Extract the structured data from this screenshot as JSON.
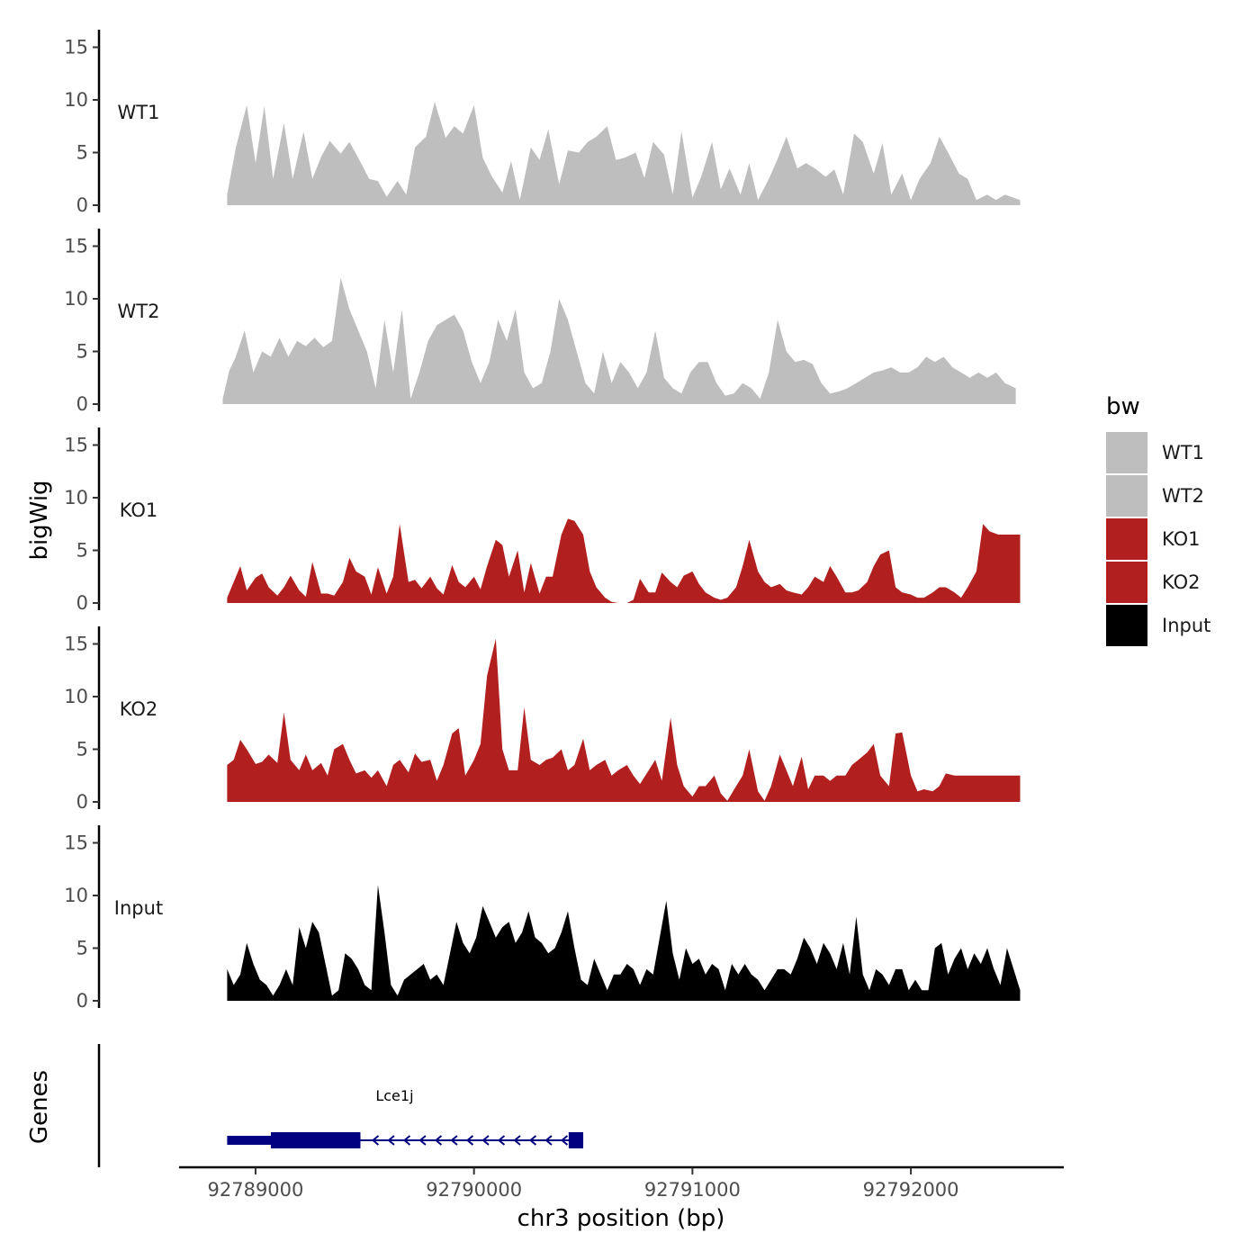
{
  "chart_data": {
    "type": "area",
    "chromosome": "chr3",
    "xlabel": "chr3 position (bp)",
    "ylabel": "bigWig",
    "gene_panel_label": "Genes",
    "xlim": [
      92788650,
      92792700
    ],
    "ylim": [
      0,
      16
    ],
    "x_ticks": [
      92789000,
      92790000,
      92791000,
      92792000
    ],
    "x_tick_labels": [
      "92789000",
      "92790000",
      "92791000",
      "92792000"
    ],
    "y_ticks": [
      0,
      5,
      10,
      15
    ],
    "y_tick_labels": [
      "0",
      "5",
      "10",
      "15"
    ],
    "legend": {
      "title": "bw",
      "position": "right"
    },
    "series": [
      {
        "name": "WT1",
        "color": "#bebebe",
        "x": [
          92788870,
          92788910,
          92788960,
          92789000,
          92789040,
          92789080,
          92789130,
          92789170,
          92789220,
          92789260,
          92789300,
          92789340,
          92789390,
          92789430,
          92789470,
          92789520,
          92789560,
          92789600,
          92789650,
          92789690,
          92789730,
          92789780,
          92789820,
          92789870,
          92789910,
          92789950,
          92790000,
          92790040,
          92790080,
          92790130,
          92790170,
          92790210,
          92790260,
          92790300,
          92790340,
          92790390,
          92790430,
          92790480,
          92790520,
          92790560,
          92790610,
          92790650,
          92790690,
          92790740,
          92790780,
          92790820,
          92790870,
          92790910,
          92790950,
          92791000,
          92791040,
          92791090,
          92791130,
          92791170,
          92791220,
          92791260,
          92791300,
          92791350,
          92791390,
          92791430,
          92791480,
          92791520,
          92791560,
          92791610,
          92791650,
          92791690,
          92791740,
          92791780,
          92791830,
          92791870,
          92791910,
          92791960,
          92792000,
          92792040,
          92792090,
          92792130,
          92792170,
          92792220,
          92792260,
          92792300,
          92792350,
          92792390,
          92792430,
          92792500
        ],
        "values": [
          1.0,
          5.5,
          9.5,
          4.0,
          9.4,
          2.5,
          7.8,
          2.5,
          7.0,
          2.5,
          4.6,
          6.1,
          4.9,
          6.0,
          4.5,
          2.5,
          2.3,
          0.8,
          2.3,
          1.0,
          5.5,
          6.5,
          9.8,
          6.4,
          7.5,
          6.8,
          9.5,
          4.5,
          2.8,
          1.2,
          4.2,
          0.5,
          5.5,
          4.3,
          7.2,
          2.0,
          5.2,
          5.0,
          6.0,
          6.5,
          7.5,
          4.3,
          4.5,
          5.0,
          2.6,
          6.0,
          4.8,
          1.0,
          7.0,
          0.7,
          2.7,
          6.0,
          1.5,
          3.5,
          1.0,
          4.0,
          0.5,
          2.5,
          4.4,
          6.5,
          3.5,
          4.0,
          3.5,
          2.7,
          3.4,
          1.0,
          6.8,
          6.0,
          3.0,
          5.9,
          1.0,
          3.0,
          0.5,
          2.5,
          4.0,
          6.5,
          5.0,
          3.0,
          2.5,
          0.5,
          1.0,
          0.5,
          1.0,
          0.5
        ]
      },
      {
        "name": "WT2",
        "color": "#bebebe",
        "x": [
          92788850,
          92788880,
          92788910,
          92788950,
          92788990,
          92789030,
          92789070,
          92789110,
          92789150,
          92789190,
          92789230,
          92789270,
          92789310,
          92789350,
          92789390,
          92789430,
          92789470,
          92789510,
          92789550,
          92789590,
          92789630,
          92789670,
          92789710,
          92789750,
          92789790,
          92789830,
          92789870,
          92789910,
          92789950,
          92789990,
          92790030,
          92790070,
          92790110,
          92790150,
          92790190,
          92790230,
          92790270,
          92790310,
          92790350,
          92790390,
          92790430,
          92790470,
          92790510,
          92790550,
          92790590,
          92790630,
          92790670,
          92790710,
          92790750,
          92790790,
          92790830,
          92790870,
          92790910,
          92790950,
          92790990,
          92791030,
          92791070,
          92791110,
          92791150,
          92791190,
          92791230,
          92791270,
          92791310,
          92791350,
          92791390,
          92791430,
          92791470,
          92791510,
          92791550,
          92791590,
          92791630,
          92791670,
          92791710,
          92791750,
          92791790,
          92791830,
          92791870,
          92791910,
          92791950,
          92791990,
          92792030,
          92792070,
          92792110,
          92792150,
          92792190,
          92792230,
          92792270,
          92792310,
          92792350,
          92792390,
          92792430,
          92792480
        ],
        "values": [
          0.5,
          3.2,
          4.5,
          7.0,
          3.0,
          5.0,
          4.5,
          6.3,
          4.5,
          6.0,
          5.5,
          6.3,
          5.4,
          6.0,
          12.0,
          9.0,
          7.0,
          5.0,
          1.5,
          8.0,
          3.0,
          9.0,
          0.5,
          3.0,
          6.0,
          7.5,
          8.0,
          8.5,
          7.0,
          4.0,
          2.0,
          4.0,
          8.0,
          6.0,
          9.0,
          3.0,
          1.5,
          2.0,
          5.0,
          10.0,
          8.0,
          5.0,
          2.0,
          1.0,
          5.0,
          2.0,
          4.0,
          3.0,
          1.5,
          3.0,
          7.0,
          2.5,
          1.5,
          1.0,
          3.0,
          4.0,
          4.0,
          2.0,
          0.8,
          1.0,
          2.0,
          1.5,
          0.5,
          3.0,
          8.0,
          5.0,
          4.0,
          4.2,
          3.8,
          2.0,
          1.0,
          1.2,
          1.5,
          2.0,
          2.5,
          3.0,
          3.2,
          3.5,
          3.0,
          3.0,
          3.5,
          4.5,
          4.0,
          4.5,
          3.5,
          3.0,
          2.5,
          3.0,
          2.5,
          3.0,
          2.0,
          1.5
        ]
      },
      {
        "name": "KO1",
        "color": "#b21f1f",
        "x": [
          92788870,
          92788900,
          92788930,
          92788960,
          92789000,
          92789030,
          92789060,
          92789100,
          92789130,
          92789160,
          92789200,
          92789230,
          92789260,
          92789300,
          92789330,
          92789360,
          92789400,
          92789430,
          92789460,
          92789500,
          92789530,
          92789560,
          92789600,
          92789630,
          92789660,
          92789700,
          92789730,
          92789760,
          92789800,
          92789830,
          92789860,
          92789900,
          92789930,
          92789960,
          92790000,
          92790030,
          92790060,
          92790100,
          92790130,
          92790160,
          92790200,
          92790230,
          92790260,
          92790300,
          92790330,
          92790360,
          92790400,
          92790430,
          92790460,
          92790500,
          92790530,
          92790560,
          92790600,
          92790630,
          92790660,
          92790700,
          92790730,
          92790760,
          92790800,
          92790830,
          92790860,
          92790900,
          92790930,
          92790960,
          92791000,
          92791030,
          92791060,
          92791100,
          92791130,
          92791160,
          92791200,
          92791230,
          92791260,
          92791300,
          92791330,
          92791360,
          92791400,
          92791430,
          92791460,
          92791500,
          92791530,
          92791560,
          92791600,
          92791630,
          92791660,
          92791700,
          92791730,
          92791760,
          92791800,
          92791830,
          92791860,
          92791900,
          92791930,
          92791960,
          92792000,
          92792030,
          92792060,
          92792100,
          92792130,
          92792160,
          92792200,
          92792230,
          92792260,
          92792300,
          92792330,
          92792360,
          92792400,
          92792430,
          92792460,
          92792500
        ],
        "values": [
          0.5,
          2.0,
          3.5,
          1.2,
          2.4,
          2.8,
          1.5,
          0.7,
          1.5,
          2.6,
          1.2,
          0.6,
          3.9,
          0.9,
          0.9,
          0.7,
          2.0,
          4.3,
          3.0,
          2.5,
          0.8,
          3.4,
          0.9,
          2.5,
          7.5,
          2.0,
          2.2,
          1.4,
          2.5,
          1.4,
          0.8,
          3.6,
          2.0,
          1.5,
          2.5,
          1.3,
          3.5,
          6.0,
          5.5,
          2.5,
          5.0,
          1.0,
          3.8,
          0.9,
          2.5,
          2.5,
          6.5,
          8.0,
          7.8,
          6.5,
          3.0,
          1.5,
          0.5,
          0.1,
          0,
          0,
          0.3,
          2.3,
          1.0,
          1.0,
          2.9,
          2.0,
          1.5,
          2.6,
          3.0,
          1.8,
          1.0,
          0.5,
          0.3,
          0.5,
          1.5,
          3.5,
          6.0,
          3.0,
          2.0,
          1.5,
          1.8,
          1.2,
          1.0,
          0.8,
          1.5,
          2.5,
          2.0,
          3.5,
          2.5,
          1.0,
          1.0,
          1.2,
          2.0,
          3.5,
          4.6,
          5.0,
          1.5,
          1.0,
          0.8,
          0.5,
          0.5,
          1.0,
          1.5,
          1.5,
          1.0,
          0.5,
          1.5,
          3.0,
          7.5,
          6.8,
          6.5,
          6.5,
          6.5,
          6.5
        ]
      },
      {
        "name": "KO2",
        "color": "#b21f1f",
        "x": [
          92788870,
          92788900,
          92788930,
          92788960,
          92789000,
          92789030,
          92789060,
          92789100,
          92789130,
          92789160,
          92789200,
          92789230,
          92789260,
          92789300,
          92789330,
          92789360,
          92789400,
          92789430,
          92789460,
          92789500,
          92789530,
          92789560,
          92789600,
          92789630,
          92789660,
          92789700,
          92789730,
          92789760,
          92789800,
          92789830,
          92789860,
          92789900,
          92789930,
          92789960,
          92790000,
          92790030,
          92790060,
          92790100,
          92790130,
          92790160,
          92790200,
          92790230,
          92790260,
          92790300,
          92790330,
          92790360,
          92790400,
          92790430,
          92790460,
          92790500,
          92790530,
          92790560,
          92790600,
          92790630,
          92790660,
          92790700,
          92790730,
          92790760,
          92790800,
          92790830,
          92790860,
          92790900,
          92790930,
          92790960,
          92791000,
          92791030,
          92791060,
          92791100,
          92791130,
          92791160,
          92791200,
          92791230,
          92791260,
          92791300,
          92791330,
          92791360,
          92791400,
          92791430,
          92791460,
          92791500,
          92791530,
          92791560,
          92791600,
          92791630,
          92791660,
          92791700,
          92791730,
          92791760,
          92791800,
          92791830,
          92791860,
          92791900,
          92791930,
          92791960,
          92792000,
          92792030,
          92792060,
          92792100,
          92792130,
          92792160,
          92792200,
          92792230,
          92792260,
          92792300,
          92792330,
          92792360,
          92792400,
          92792430,
          92792460,
          92792500
        ],
        "values": [
          3.5,
          4.0,
          5.9,
          5.0,
          3.6,
          3.8,
          4.5,
          3.7,
          8.5,
          4.0,
          3.0,
          4.5,
          3.0,
          3.7,
          2.5,
          5.0,
          5.5,
          4.0,
          2.7,
          3.0,
          2.3,
          3.0,
          1.5,
          3.5,
          4.0,
          2.8,
          4.6,
          3.8,
          4.0,
          2.0,
          3.5,
          6.5,
          7.0,
          2.5,
          4.0,
          5.5,
          12.0,
          15.5,
          5.0,
          3.0,
          3.0,
          9.0,
          4.0,
          3.5,
          4.0,
          4.2,
          5.0,
          3.0,
          3.5,
          6.0,
          3.0,
          3.5,
          4.0,
          2.5,
          3.0,
          3.5,
          2.5,
          1.7,
          3.0,
          4.0,
          2.0,
          8.0,
          3.5,
          1.5,
          0.5,
          1.5,
          1.5,
          2.5,
          0.8,
          0.1,
          1.5,
          2.5,
          5.0,
          1.0,
          0.1,
          1.5,
          4.5,
          3.0,
          1.5,
          4.3,
          1.2,
          2.5,
          2.5,
          2.0,
          2.5,
          2.5,
          3.5,
          4.0,
          4.7,
          5.5,
          2.5,
          1.5,
          6.5,
          6.6,
          2.5,
          1.0,
          1.2,
          1.0,
          1.5,
          2.7,
          2.5,
          2.5,
          2.5,
          2.5,
          2.5,
          2.5,
          2.5,
          2.5,
          2.5,
          2.5
        ]
      },
      {
        "name": "Input",
        "color": "#000000",
        "x": [
          92788870,
          92788900,
          92788930,
          92788960,
          92788990,
          92789020,
          92789050,
          92789080,
          92789110,
          92789140,
          92789170,
          92789200,
          92789230,
          92789260,
          92789290,
          92789320,
          92789350,
          92789380,
          92789410,
          92789440,
          92789470,
          92789500,
          92789530,
          92789560,
          92789590,
          92789620,
          92789650,
          92789680,
          92789710,
          92789740,
          92789770,
          92789800,
          92789830,
          92789860,
          92789890,
          92789920,
          92789950,
          92789980,
          92790010,
          92790040,
          92790070,
          92790100,
          92790130,
          92790160,
          92790190,
          92790220,
          92790250,
          92790280,
          92790310,
          92790340,
          92790370,
          92790400,
          92790430,
          92790460,
          92790490,
          92790520,
          92790550,
          92790580,
          92790610,
          92790640,
          92790670,
          92790700,
          92790730,
          92790760,
          92790790,
          92790820,
          92790850,
          92790880,
          92790910,
          92790940,
          92790970,
          92791000,
          92791030,
          92791060,
          92791090,
          92791120,
          92791150,
          92791180,
          92791210,
          92791240,
          92791270,
          92791300,
          92791330,
          92791360,
          92791390,
          92791420,
          92791450,
          92791480,
          92791510,
          92791540,
          92791570,
          92791600,
          92791630,
          92791660,
          92791690,
          92791720,
          92791750,
          92791780,
          92791810,
          92791840,
          92791870,
          92791900,
          92791930,
          92791960,
          92791990,
          92792020,
          92792050,
          92792080,
          92792110,
          92792140,
          92792170,
          92792200,
          92792230,
          92792260,
          92792290,
          92792320,
          92792350,
          92792380,
          92792410,
          92792440,
          92792470,
          92792500
        ],
        "values": [
          3.0,
          1.5,
          2.5,
          5.5,
          3.5,
          2.0,
          1.5,
          0.5,
          1.5,
          3.0,
          1.5,
          7.0,
          5.0,
          7.5,
          6.5,
          3.5,
          0.5,
          1.0,
          4.5,
          4.0,
          3.0,
          1.5,
          1.0,
          11.0,
          6.5,
          1.5,
          0.5,
          2.0,
          2.5,
          3.0,
          3.5,
          2.0,
          2.5,
          1.5,
          4.5,
          7.5,
          5.5,
          4.5,
          6.0,
          9.0,
          7.5,
          6.0,
          7.0,
          7.5,
          5.5,
          6.5,
          8.5,
          6.0,
          5.5,
          4.5,
          5.0,
          6.5,
          8.5,
          5.0,
          2.0,
          1.5,
          4.0,
          2.5,
          1.0,
          2.5,
          2.5,
          3.5,
          3.0,
          1.5,
          3.0,
          2.5,
          6.0,
          9.5,
          4.5,
          2.0,
          5.0,
          3.5,
          4.0,
          2.5,
          3.5,
          3.0,
          1.0,
          3.5,
          2.5,
          3.5,
          2.5,
          2.0,
          1.0,
          2.0,
          3.0,
          3.0,
          2.5,
          4.0,
          6.0,
          5.0,
          3.5,
          5.5,
          4.5,
          3.0,
          5.5,
          2.5,
          8.0,
          2.5,
          1.0,
          3.0,
          2.5,
          1.5,
          3.0,
          3.0,
          1.0,
          2.0,
          1.0,
          1.0,
          5.0,
          5.5,
          2.5,
          4.0,
          5.0,
          3.0,
          4.5,
          3.5,
          5.0,
          3.0,
          1.5,
          5.0,
          3.0,
          1.0
        ]
      }
    ],
    "genes": [
      {
        "name": "Lce1j",
        "strand": "-",
        "start": 92788870,
        "end": 92790500,
        "exons": [
          [
            92788870,
            92789480
          ],
          [
            92790450,
            92790500
          ]
        ],
        "thick_start": 92789070,
        "thick_end": 92789480,
        "color": "#000080"
      }
    ]
  }
}
